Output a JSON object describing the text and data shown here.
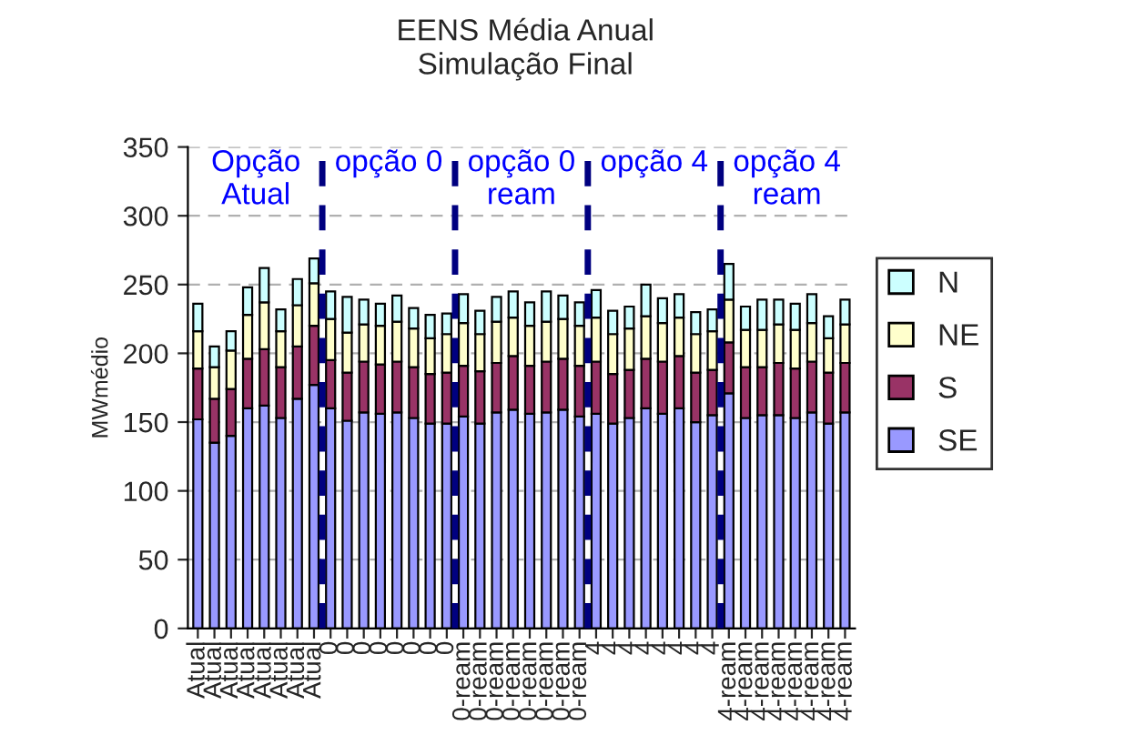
{
  "chart_data": {
    "type": "bar",
    "stacked": true,
    "title": "EENS Média Anual",
    "subtitle": "Simulação Final",
    "ylabel": "MWmédio",
    "categories": [
      "Atual",
      "Atual",
      "Atual",
      "Atual",
      "Atual",
      "Atual",
      "Atual",
      "Atual",
      "0",
      "0",
      "0",
      "0",
      "0",
      "0",
      "0",
      "0",
      "0-ream",
      "0-ream",
      "0-ream",
      "0-ream",
      "0-ream",
      "0-ream",
      "0-ream",
      "0-ream",
      "4",
      "4",
      "4",
      "4",
      "4",
      "4",
      "4",
      "4",
      "4-ream",
      "4-ream",
      "4-ream",
      "4-ream",
      "4-ream",
      "4-ream",
      "4-ream",
      "4-ream"
    ],
    "series": [
      {
        "name": "SE",
        "color": "#9999ff",
        "values": [
          152,
          135,
          140,
          160,
          162,
          153,
          167,
          177,
          160,
          151,
          157,
          156,
          157,
          153,
          149,
          149,
          154,
          149,
          157,
          159,
          156,
          157,
          159,
          154,
          156,
          149,
          153,
          160,
          156,
          160,
          150,
          155,
          171,
          153,
          155,
          155,
          153,
          157,
          149,
          157
        ]
      },
      {
        "name": "S",
        "color": "#993366",
        "values": [
          37,
          32,
          34,
          36,
          41,
          37,
          38,
          43,
          35,
          35,
          37,
          36,
          37,
          37,
          36,
          37,
          37,
          38,
          36,
          39,
          35,
          37,
          37,
          37,
          38,
          36,
          35,
          36,
          38,
          38,
          36,
          33,
          37,
          37,
          35,
          38,
          36,
          37,
          37,
          36
        ]
      },
      {
        "name": "NE",
        "color": "#ffffcc",
        "values": [
          27,
          23,
          28,
          32,
          34,
          26,
          30,
          31,
          30,
          29,
          27,
          28,
          29,
          28,
          26,
          28,
          31,
          27,
          30,
          28,
          29,
          29,
          29,
          29,
          32,
          29,
          30,
          31,
          28,
          28,
          28,
          28,
          31,
          27,
          27,
          28,
          28,
          28,
          25,
          28
        ]
      },
      {
        "name": "N",
        "color": "#ccffff",
        "values": [
          20,
          15,
          14,
          20,
          25,
          16,
          19,
          18,
          20,
          26,
          18,
          16,
          19,
          15,
          17,
          15,
          21,
          17,
          18,
          19,
          17,
          22,
          17,
          17,
          20,
          17,
          16,
          23,
          18,
          17,
          16,
          16,
          26,
          17,
          22,
          18,
          19,
          21,
          16,
          18
        ]
      }
    ],
    "ylim": [
      0,
      350
    ],
    "yticks": [
      0,
      50,
      100,
      150,
      200,
      250,
      300,
      350
    ],
    "grid": "y",
    "legend": "right",
    "annotations": [
      "Opção\nAtual",
      "opção 0",
      "opção 0\nream",
      "opção 4",
      "opção 4\nream"
    ]
  }
}
